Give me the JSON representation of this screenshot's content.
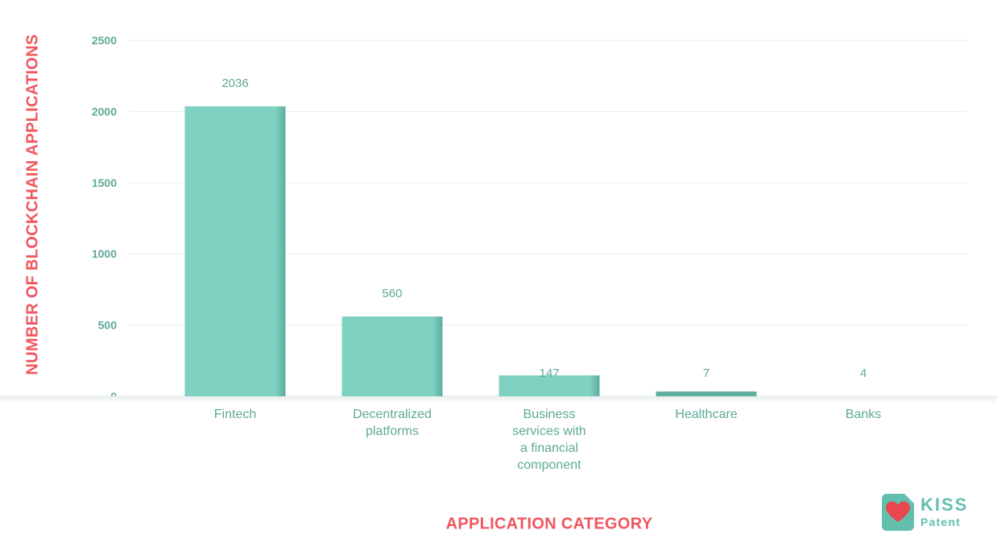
{
  "chart_data": {
    "type": "bar",
    "categories": [
      "Fintech",
      "Decentralized platforms",
      "Business services with a financial component",
      "Healthcare",
      "Banks"
    ],
    "category_lines": [
      [
        "Fintech"
      ],
      [
        "Decentralized",
        "platforms"
      ],
      [
        "Business",
        "services with",
        "a financial",
        "component"
      ],
      [
        "Healthcare"
      ],
      [
        "Banks"
      ]
    ],
    "values": [
      2036,
      560,
      147,
      7,
      4
    ],
    "data_labels": [
      "2036",
      "560",
      "147",
      "7",
      "4"
    ],
    "yticks": [
      "0",
      "500",
      "1000",
      "1500",
      "2000",
      "2500"
    ],
    "ylim": [
      0,
      2500
    ],
    "xlabel": "APPLICATION CATEGORY",
    "ylabel": "NUMBER OF BLOCKCHAIN APPLICATIONS",
    "grid": true,
    "colors": {
      "bar": "#7fd1c1",
      "bar_edge": "#5fae9f",
      "tick_text": "#5fa898",
      "axis_title": "#f0565f",
      "grid": "#dff1ec"
    }
  },
  "logo": {
    "line1": "KISS",
    "line2": "Patent",
    "icon": "heart-icon",
    "colors": {
      "badge": "#62bfae",
      "heart": "#e8474f",
      "text": "#62bfae"
    }
  }
}
